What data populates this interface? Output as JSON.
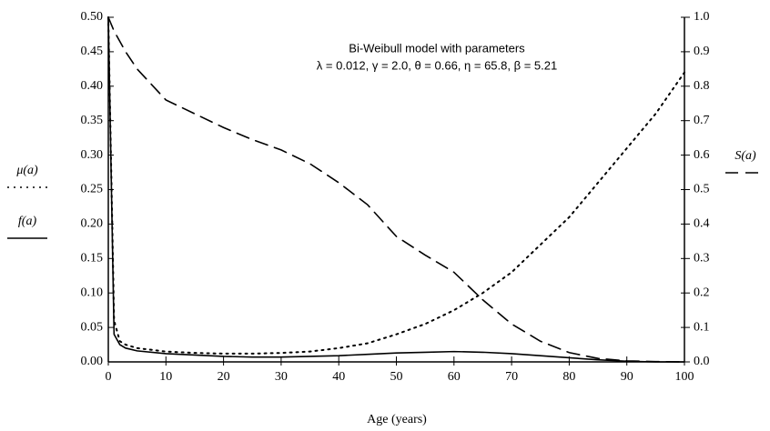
{
  "chart_data": {
    "type": "line",
    "annotation": [
      "Bi-Weibull model with parameters",
      "λ = 0.012, γ = 2.0, θ = 0.66, η = 65.8, β = 5.21"
    ],
    "xlabel": "Age (years)",
    "x": [
      0,
      1,
      2,
      3,
      5,
      10,
      15,
      20,
      25,
      30,
      35,
      40,
      45,
      50,
      55,
      60,
      65,
      70,
      75,
      80,
      85,
      90,
      95,
      100
    ],
    "series": [
      {
        "name": "μ(a)",
        "color": "#000000",
        "style": "dotted",
        "axis": "y",
        "values": [
          0.5,
          0.06,
          0.03,
          0.025,
          0.02,
          0.015,
          0.013,
          0.012,
          0.012,
          0.013,
          0.015,
          0.02,
          0.027,
          0.04,
          0.055,
          0.075,
          0.1,
          0.13,
          0.17,
          0.21,
          0.26,
          0.31,
          0.36,
          0.42
        ]
      },
      {
        "name": "f(a)",
        "color": "#000000",
        "style": "solid",
        "axis": "y",
        "values": [
          0.5,
          0.04,
          0.025,
          0.02,
          0.016,
          0.012,
          0.01,
          0.008,
          0.007,
          0.007,
          0.008,
          0.009,
          0.011,
          0.013,
          0.014,
          0.015,
          0.014,
          0.012,
          0.009,
          0.006,
          0.003,
          0.001,
          0,
          0
        ]
      },
      {
        "name": "S(a)",
        "color": "#000000",
        "style": "dashed",
        "axis": "y2",
        "values": [
          1.0,
          0.96,
          0.93,
          0.9,
          0.85,
          0.76,
          0.72,
          0.68,
          0.645,
          0.615,
          0.575,
          0.52,
          0.456,
          0.364,
          0.31,
          0.26,
          0.18,
          0.11,
          0.06,
          0.027,
          0.01,
          0.003,
          0.001,
          0
        ]
      }
    ],
    "xlim": [
      0,
      100
    ],
    "xticks": [
      0,
      10,
      20,
      30,
      40,
      50,
      60,
      70,
      80,
      90,
      100
    ],
    "ylim": [
      0,
      0.5
    ],
    "yticks": [
      {
        "value": 0,
        "label": "0.00"
      },
      0.05,
      {
        "value": 0.1,
        "label": "0.10"
      },
      0.15,
      {
        "value": 0.2,
        "label": "0.20"
      },
      0.25,
      {
        "value": 0.3,
        "label": "0.30"
      },
      0.35,
      {
        "value": 0.4,
        "label": "0.40"
      },
      0.45,
      {
        "value": 0.5,
        "label": "0.50"
      }
    ],
    "y2lim": [
      0,
      1
    ],
    "y2ticks": [
      {
        "value": 0,
        "label": "0.0"
      },
      0.1,
      0.2,
      0.3,
      0.4,
      0.5,
      0.6,
      0.7,
      0.8,
      0.9,
      {
        "value": 1,
        "label": "1.0"
      }
    ],
    "grid": false
  }
}
